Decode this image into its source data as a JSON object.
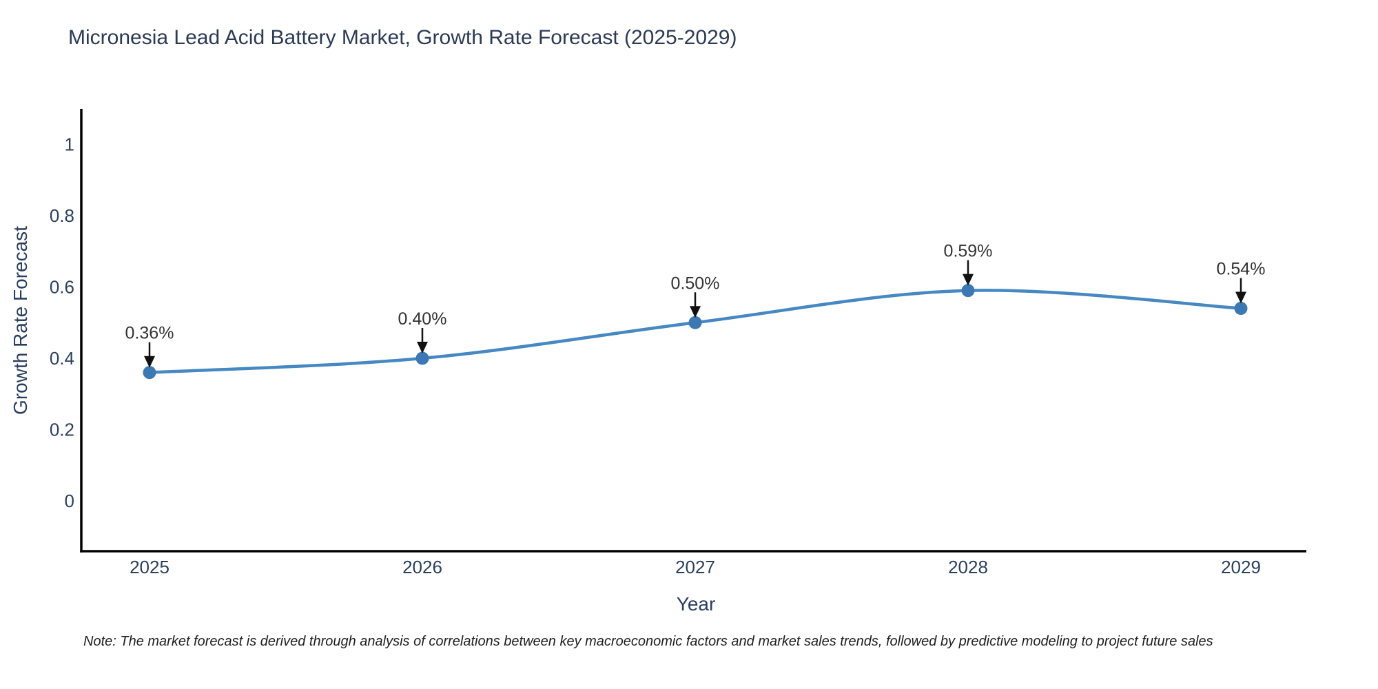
{
  "title": "Micronesia Lead Acid Battery Market, Growth Rate Forecast (2025-2029)",
  "note": "Note: The market forecast is derived through analysis of correlations between key macroeconomic factors and market sales trends, followed by predictive modeling to project future sales",
  "chart_data": {
    "type": "line",
    "line_shape": "spline",
    "title": "Micronesia Lead Acid Battery Market, Growth Rate Forecast (2025-2029)",
    "xlabel": "Year",
    "ylabel": "Growth Rate Forecast",
    "categories": [
      "2025",
      "2026",
      "2027",
      "2028",
      "2029"
    ],
    "series": [
      {
        "name": "Growth Rate Forecast",
        "values": [
          0.36,
          0.4,
          0.5,
          0.59,
          0.54
        ],
        "point_labels": [
          "0.36%",
          "0.40%",
          "0.50%",
          "0.59%",
          "0.54%"
        ]
      }
    ],
    "yticks": [
      0,
      0.2,
      0.4,
      0.6,
      0.8,
      1
    ],
    "ytick_labels": [
      "0",
      "0.2",
      "0.4",
      "0.6",
      "0.8",
      "1"
    ],
    "ylim": [
      -0.14,
      1.09
    ],
    "grid": false,
    "legend": "none",
    "markers": true,
    "annotations_have_arrows": true,
    "colors": {
      "line": "#4688c2",
      "marker": "#3b78b5",
      "arrow": "#111111",
      "axis": "#000000",
      "title_text": "#2b3a55",
      "tick_text": "#2a3f5f",
      "annotation_text": "#333333",
      "note_text": "#1f1f1f",
      "background": "#ffffff"
    }
  }
}
